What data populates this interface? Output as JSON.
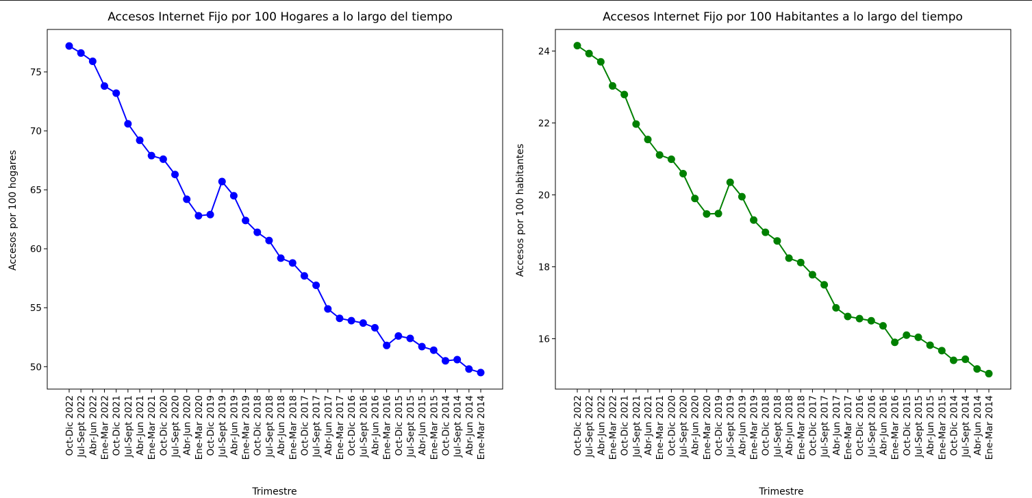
{
  "chart_data": [
    {
      "type": "line",
      "title": "Accesos Internet Fijo por 100 Hogares a lo largo del tiempo",
      "xlabel": "Trimestre",
      "ylabel": "Accesos por 100 hogares",
      "color": "#0000ff",
      "ylim": [
        48.1,
        78.6
      ],
      "yticks": [
        50,
        55,
        60,
        65,
        70,
        75
      ],
      "categories": [
        "Oct-Dic 2022",
        "Jul-Sept 2022",
        "Abr-Jun 2022",
        "Ene-Mar 2022",
        "Oct-Dic 2021",
        "Jul-Sept 2021",
        "Abr-Jun 2021",
        "Ene-Mar 2021",
        "Oct-Dic 2020",
        "Jul-Sept 2020",
        "Abr-Jun 2020",
        "Ene-Mar 2020",
        "Oct-Dic 2019",
        "Jul-Sept 2019",
        "Abr-Jun 2019",
        "Ene-Mar 2019",
        "Oct-Dic 2018",
        "Jul-Sept 2018",
        "Abr-Jun 2018",
        "Ene-Mar 2018",
        "Oct-Dic 2017",
        "Jul-Sept 2017",
        "Abr-Jun 2017",
        "Ene-Mar 2017",
        "Oct-Dic 2016",
        "Jul-Sept 2016",
        "Abr-Jun 2016",
        "Ene-Mar 2016",
        "Oct-Dic 2015",
        "Jul-Sept 2015",
        "Abr-Jun 2015",
        "Ene-Mar 2015",
        "Oct-Dic 2014",
        "Jul-Sept 2014",
        "Abr-Jun 2014",
        "Ene-Mar 2014"
      ],
      "values": [
        77.2,
        76.6,
        75.9,
        73.8,
        73.2,
        70.6,
        69.2,
        67.9,
        67.6,
        66.3,
        64.2,
        62.8,
        62.9,
        65.7,
        64.5,
        62.4,
        61.4,
        60.7,
        59.2,
        58.8,
        57.7,
        56.9,
        54.9,
        54.1,
        53.9,
        53.7,
        53.3,
        51.8,
        52.6,
        52.4,
        51.7,
        51.4,
        50.5,
        50.6,
        49.8,
        49.5
      ]
    },
    {
      "type": "line",
      "title": "Accesos Internet Fijo por 100 Habitantes a lo largo del tiempo",
      "xlabel": "Trimestre",
      "ylabel": "Accesos por 100 habitantes",
      "color": "#008000",
      "ylim": [
        14.6,
        24.6
      ],
      "yticks": [
        16,
        18,
        20,
        22,
        24
      ],
      "categories": [
        "Oct-Dic 2022",
        "Jul-Sept 2022",
        "Abr-Jun 2022",
        "Ene-Mar 2022",
        "Oct-Dic 2021",
        "Jul-Sept 2021",
        "Abr-Jun 2021",
        "Ene-Mar 2021",
        "Oct-Dic 2020",
        "Jul-Sept 2020",
        "Abr-Jun 2020",
        "Ene-Mar 2020",
        "Oct-Dic 2019",
        "Jul-Sept 2019",
        "Abr-Jun 2019",
        "Ene-Mar 2019",
        "Oct-Dic 2018",
        "Jul-Sept 2018",
        "Abr-Jun 2018",
        "Ene-Mar 2018",
        "Oct-Dic 2017",
        "Jul-Sept 2017",
        "Abr-Jun 2017",
        "Ene-Mar 2017",
        "Oct-Dic 2016",
        "Jul-Sept 2016",
        "Abr-Jun 2016",
        "Ene-Mar 2016",
        "Oct-Dic 2015",
        "Jul-Sept 2015",
        "Abr-Jun 2015",
        "Ene-Mar 2015",
        "Oct-Dic 2014",
        "Jul-Sept 2014",
        "Abr-Jun 2014",
        "Ene-Mar 2014"
      ],
      "values": [
        24.15,
        23.93,
        23.7,
        23.03,
        22.79,
        21.97,
        21.54,
        21.11,
        20.99,
        20.59,
        19.9,
        19.47,
        19.48,
        20.35,
        19.95,
        19.3,
        18.96,
        18.72,
        18.24,
        18.12,
        17.78,
        17.5,
        16.86,
        16.62,
        16.56,
        16.5,
        16.36,
        15.9,
        16.1,
        16.04,
        15.82,
        15.67,
        15.4,
        15.43,
        15.16,
        15.03
      ]
    }
  ]
}
